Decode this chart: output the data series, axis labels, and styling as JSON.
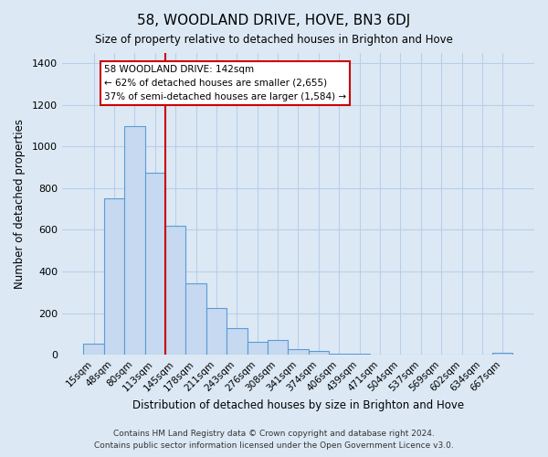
{
  "title": "58, WOODLAND DRIVE, HOVE, BN3 6DJ",
  "subtitle": "Size of property relative to detached houses in Brighton and Hove",
  "xlabel": "Distribution of detached houses by size in Brighton and Hove",
  "ylabel": "Number of detached properties",
  "categories": [
    "15sqm",
    "48sqm",
    "80sqm",
    "113sqm",
    "145sqm",
    "178sqm",
    "211sqm",
    "243sqm",
    "276sqm",
    "308sqm",
    "341sqm",
    "374sqm",
    "406sqm",
    "439sqm",
    "471sqm",
    "504sqm",
    "537sqm",
    "569sqm",
    "602sqm",
    "634sqm",
    "667sqm"
  ],
  "values": [
    52,
    750,
    1095,
    875,
    620,
    345,
    225,
    130,
    65,
    72,
    28,
    20,
    8,
    4,
    2,
    1,
    0,
    0,
    0,
    0,
    10
  ],
  "bar_color": "#c6d9f0",
  "bar_edge_color": "#5b9bd5",
  "annotation_line_color": "#cc0000",
  "annotation_box_color": "#ffffff",
  "annotation_box_edge_color": "#cc0000",
  "footer_line1": "Contains HM Land Registry data © Crown copyright and database right 2024.",
  "footer_line2": "Contains public sector information licensed under the Open Government Licence v3.0.",
  "bg_color": "#dce9f5",
  "plot_bg_color": "#dce9f5",
  "grid_color": "#b8cfe8",
  "ylim": [
    0,
    1450
  ],
  "yticks": [
    0,
    200,
    400,
    600,
    800,
    1000,
    1200,
    1400
  ],
  "red_line_x": 3.5
}
